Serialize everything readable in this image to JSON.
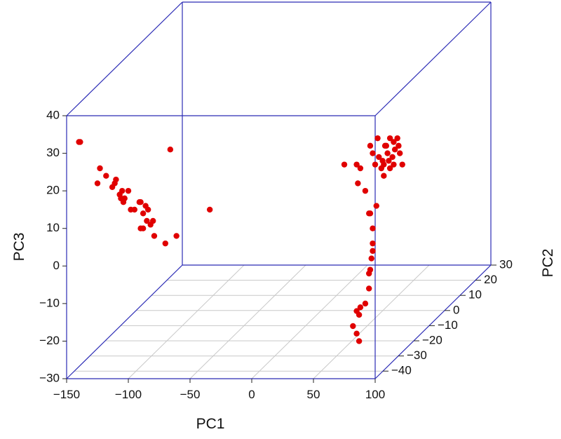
{
  "chart_data": {
    "type": "scatter",
    "projection": "3d",
    "box_color": "#2b2bb5",
    "grid_color": "#c8c8c8",
    "point_color": "#e00000",
    "grid": true,
    "x_axis": {
      "label": "PC1",
      "range": [
        -150,
        100
      ],
      "ticks": [
        -150,
        -100,
        -50,
        0,
        50,
        100
      ],
      "tick_labels": [
        "−150",
        "−100",
        "−50",
        "0",
        "50",
        "100"
      ]
    },
    "y_axis": {
      "label": "PC2",
      "range": [
        -45,
        30
      ],
      "ticks": [
        -40,
        -30,
        -20,
        -10,
        0,
        10,
        20,
        30
      ],
      "tick_labels": [
        "−40",
        "−30",
        "−20",
        "−10",
        "0",
        "10",
        "20",
        "30"
      ]
    },
    "z_axis": {
      "label": "PC3",
      "range": [
        -30,
        40
      ],
      "ticks": [
        -30,
        -20,
        -10,
        0,
        10,
        20,
        30,
        40
      ],
      "tick_labels": [
        "−30",
        "−20",
        "−10",
        "0",
        "10",
        "20",
        "30",
        "40"
      ]
    },
    "points": [
      [
        -140,
        -45,
        33
      ],
      [
        -139,
        -45,
        33
      ],
      [
        -125,
        -45,
        22
      ],
      [
        -123,
        -45,
        26
      ],
      [
        -118,
        -45,
        24
      ],
      [
        -113,
        -45,
        21
      ],
      [
        -111,
        -45,
        22
      ],
      [
        -110,
        -45,
        23
      ],
      [
        -107,
        -45,
        19
      ],
      [
        -106,
        -45,
        18
      ],
      [
        -105,
        -45,
        20
      ],
      [
        -104,
        -45,
        17
      ],
      [
        -103,
        -45,
        18
      ],
      [
        -100,
        -45,
        20
      ],
      [
        -98,
        -45,
        15
      ],
      [
        -95,
        -45,
        15
      ],
      [
        -91,
        -45,
        17
      ],
      [
        -90,
        -45,
        17
      ],
      [
        -88,
        -45,
        14
      ],
      [
        -86,
        -45,
        16
      ],
      [
        -84,
        -45,
        15
      ],
      [
        -90,
        -45,
        10
      ],
      [
        -88,
        -45,
        10
      ],
      [
        -85,
        -45,
        12
      ],
      [
        -82,
        -45,
        11
      ],
      [
        -80,
        -45,
        12
      ],
      [
        -79,
        -45,
        8
      ],
      [
        -70,
        -45,
        6
      ],
      [
        -66,
        -45,
        31
      ],
      [
        -61,
        -45,
        8
      ],
      [
        -34,
        -45,
        15
      ],
      [
        75,
        -45,
        27
      ],
      [
        85,
        -45,
        27
      ],
      [
        86,
        -45,
        22
      ],
      [
        88,
        -45,
        26
      ],
      [
        92,
        -45,
        20
      ],
      [
        96,
        -45,
        32
      ],
      [
        98,
        -45,
        30
      ],
      [
        100,
        -45,
        27
      ],
      [
        102,
        -45,
        34
      ],
      [
        103,
        -45,
        29
      ],
      [
        105,
        -45,
        26
      ],
      [
        106,
        -45,
        28
      ],
      [
        107,
        -45,
        24
      ],
      [
        107,
        -45,
        27
      ],
      [
        108,
        -45,
        32
      ],
      [
        109,
        -45,
        32
      ],
      [
        110,
        -45,
        30
      ],
      [
        111,
        -45,
        28
      ],
      [
        112,
        -45,
        34
      ],
      [
        112,
        -45,
        26
      ],
      [
        114,
        -45,
        29
      ],
      [
        115,
        -45,
        27
      ],
      [
        115,
        -45,
        33
      ],
      [
        116,
        -45,
        31
      ],
      [
        118,
        -45,
        34
      ],
      [
        119,
        -45,
        32
      ],
      [
        120,
        -45,
        30
      ],
      [
        122,
        -45,
        27
      ],
      [
        95,
        -45,
        14
      ],
      [
        96,
        -45,
        14
      ],
      [
        98,
        -45,
        10
      ],
      [
        98,
        -45,
        6
      ],
      [
        101,
        -45,
        16
      ],
      [
        97,
        -45,
        2
      ],
      [
        96,
        -45,
        -1
      ],
      [
        95,
        -45,
        -2
      ],
      [
        98,
        -45,
        4
      ],
      [
        95,
        -45,
        -6
      ],
      [
        92,
        -45,
        -10
      ],
      [
        88,
        -45,
        -11
      ],
      [
        87,
        -45,
        -13
      ],
      [
        87,
        -45,
        -20
      ],
      [
        85,
        -45,
        -12
      ],
      [
        85,
        -45,
        -18
      ],
      [
        82,
        -45,
        -16
      ]
    ]
  }
}
